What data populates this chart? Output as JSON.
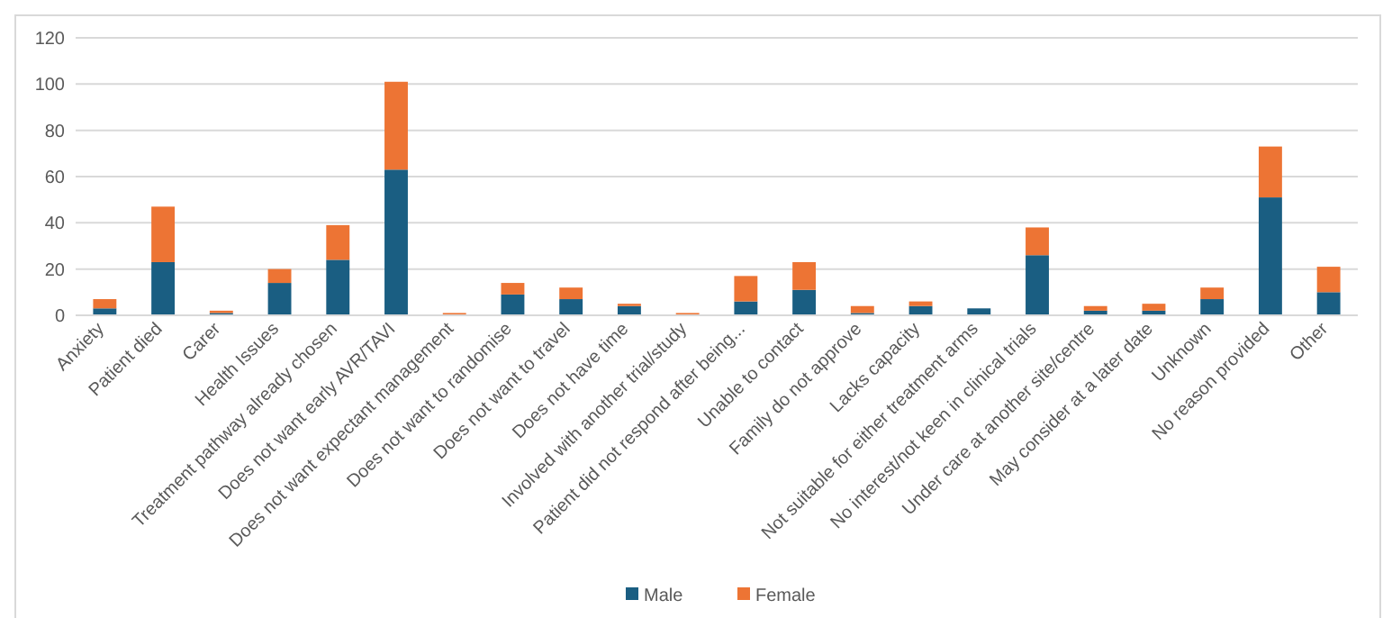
{
  "chart_data": {
    "type": "bar",
    "stacked": true,
    "categories": [
      "Anxiety",
      "Patient died",
      "Carer",
      "Health Issues",
      "Treatment pathway already chosen",
      "Does not want early AVR/TAVI",
      "Does not want expectant management",
      "Does not want to randomise",
      "Does not want to travel",
      "Does not have time",
      "Involved with another trial/study",
      "Patient did not respond after being...",
      "Unable to contact",
      "Family do not approve",
      "Lacks capacity",
      "Not suitable for either treatment arms",
      "No interest/not keen in clinical trials",
      "Under care at another site/centre",
      "May consider at a later date",
      "Unknown",
      "No reason provided",
      "Other"
    ],
    "series": [
      {
        "name": "Male",
        "color": "#1a5e82",
        "values": [
          3,
          23,
          1,
          14,
          24,
          63,
          0,
          9,
          7,
          4,
          0,
          6,
          11,
          1,
          4,
          3,
          26,
          2,
          2,
          7,
          51,
          10
        ]
      },
      {
        "name": "Female",
        "color": "#ed7434",
        "values": [
          4,
          24,
          1,
          6,
          15,
          38,
          1,
          5,
          5,
          1,
          1,
          11,
          12,
          3,
          2,
          0,
          12,
          2,
          3,
          5,
          22,
          11
        ]
      }
    ],
    "ylim": [
      0,
      120
    ],
    "yticks": [
      0,
      20,
      40,
      60,
      80,
      100,
      120
    ],
    "grid": "y",
    "legend": "bottom"
  }
}
